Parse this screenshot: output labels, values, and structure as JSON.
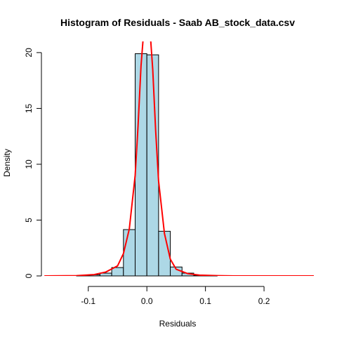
{
  "chart_data": {
    "type": "histogram",
    "title": "Histogram of Residuals - Saab AB_stock_data.csv",
    "xlabel": "Residuals",
    "ylabel": "Density",
    "xlim": [
      -0.18,
      0.285
    ],
    "ylim": [
      0,
      21
    ],
    "x_ticks": [
      -0.1,
      0.0,
      0.1,
      0.2
    ],
    "x_tick_labels": [
      "-0.1",
      "0.0",
      "0.1",
      "0.2"
    ],
    "y_ticks": [
      0,
      5,
      10,
      15,
      20
    ],
    "y_tick_labels": [
      "0",
      "5",
      "10",
      "15",
      "20"
    ],
    "bar_color": "#add8e6",
    "bar_border_color": "#000000",
    "curve_color": "#ff0000",
    "grid": false,
    "bins": [
      {
        "x0": -0.12,
        "x1": -0.1,
        "density": 0.03
      },
      {
        "x0": -0.1,
        "x1": -0.08,
        "density": 0.1
      },
      {
        "x0": -0.08,
        "x1": -0.06,
        "density": 0.25
      },
      {
        "x0": -0.06,
        "x1": -0.04,
        "density": 0.75
      },
      {
        "x0": -0.04,
        "x1": -0.02,
        "density": 4.15
      },
      {
        "x0": -0.02,
        "x1": 0.0,
        "density": 19.9
      },
      {
        "x0": 0.0,
        "x1": 0.02,
        "density": 19.8
      },
      {
        "x0": 0.02,
        "x1": 0.04,
        "density": 4.0
      },
      {
        "x0": 0.04,
        "x1": 0.06,
        "density": 0.8
      },
      {
        "x0": 0.06,
        "x1": 0.08,
        "density": 0.25
      },
      {
        "x0": 0.08,
        "x1": 0.1,
        "density": 0.05
      },
      {
        "x0": 0.1,
        "x1": 0.12,
        "density": 0.02
      }
    ],
    "density_curve": {
      "x": [
        -0.175,
        -0.12,
        -0.09,
        -0.07,
        -0.05,
        -0.04,
        -0.03,
        -0.02,
        -0.015,
        -0.01,
        -0.006,
        -0.003,
        0.0,
        0.003,
        0.006,
        0.01,
        0.015,
        0.02,
        0.03,
        0.04,
        0.05,
        0.07,
        0.09,
        0.12,
        0.15,
        0.2,
        0.285
      ],
      "y": [
        0.0,
        0.02,
        0.12,
        0.35,
        0.9,
        2.0,
        4.2,
        9.0,
        13.5,
        18.8,
        21.5,
        22.0,
        22.0,
        22.0,
        21.5,
        18.5,
        13.0,
        8.5,
        3.8,
        1.5,
        0.6,
        0.2,
        0.07,
        0.02,
        0.0,
        0.0,
        0.0
      ]
    }
  }
}
